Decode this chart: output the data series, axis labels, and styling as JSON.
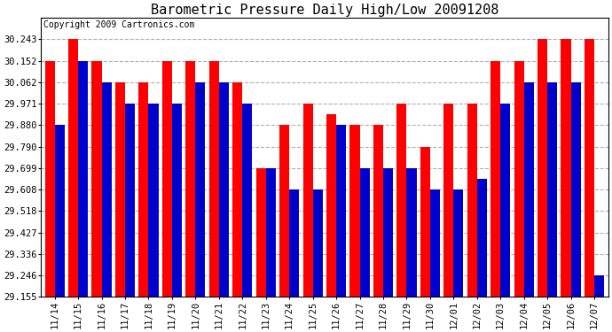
{
  "title": "Barometric Pressure Daily High/Low 20091208",
  "copyright": "Copyright 2009 Cartronics.com",
  "dates": [
    "11/14",
    "11/15",
    "11/16",
    "11/17",
    "11/18",
    "11/19",
    "11/20",
    "11/21",
    "11/22",
    "11/23",
    "11/24",
    "11/25",
    "11/26",
    "11/27",
    "11/28",
    "11/29",
    "11/30",
    "12/01",
    "12/02",
    "12/03",
    "12/04",
    "12/05",
    "12/06",
    "12/07"
  ],
  "highs": [
    30.152,
    30.243,
    30.152,
    30.062,
    30.062,
    30.152,
    30.152,
    30.152,
    30.062,
    29.699,
    29.88,
    29.971,
    29.925,
    29.88,
    29.88,
    29.971,
    29.79,
    29.971,
    29.971,
    30.152,
    30.152,
    30.243,
    30.243,
    30.243
  ],
  "lows": [
    29.88,
    30.152,
    30.062,
    29.971,
    29.971,
    29.971,
    30.062,
    30.062,
    29.971,
    29.699,
    29.608,
    29.608,
    29.88,
    29.699,
    29.699,
    29.699,
    29.608,
    29.608,
    29.652,
    29.971,
    30.062,
    30.062,
    30.062,
    29.246
  ],
  "high_color": "#ff0000",
  "low_color": "#0000cc",
  "bg_color": "#ffffff",
  "plot_bg_color": "#ffffff",
  "grid_color": "#b0b0b0",
  "ymin": 29.155,
  "ymax": 30.333,
  "yticks": [
    29.155,
    29.246,
    29.336,
    29.427,
    29.518,
    29.608,
    29.699,
    29.79,
    29.88,
    29.971,
    30.062,
    30.152,
    30.243
  ],
  "title_fontsize": 11,
  "copyright_fontsize": 7,
  "tick_fontsize": 7.5,
  "bar_width": 0.42
}
